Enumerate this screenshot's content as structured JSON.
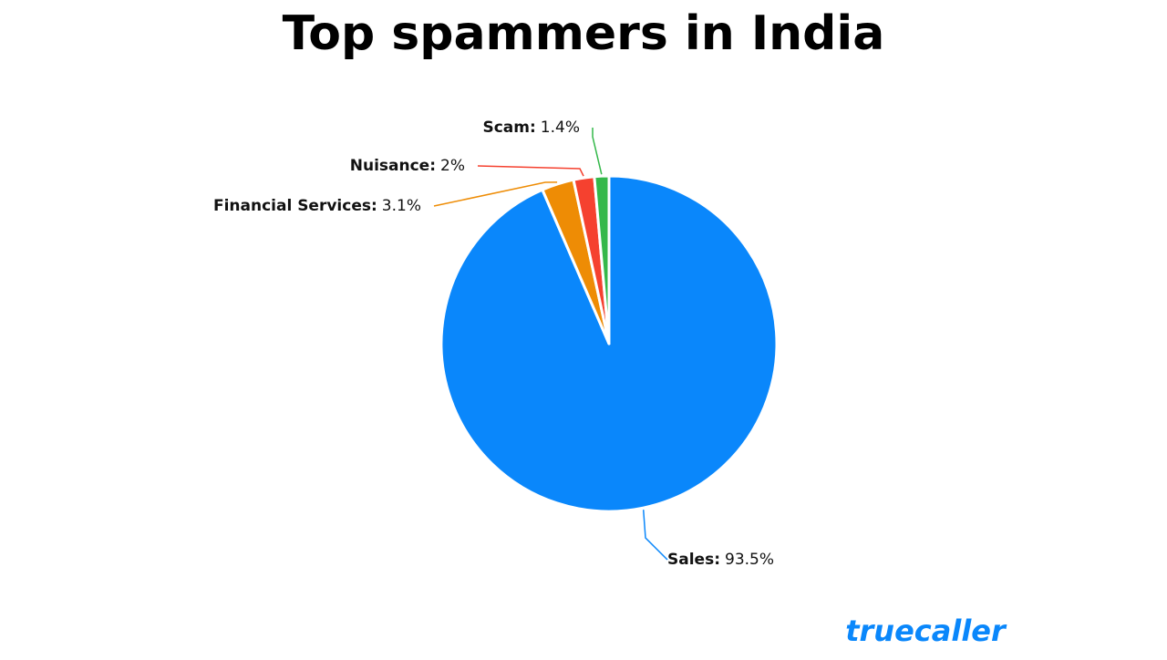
{
  "chart_data": {
    "type": "pie",
    "title": "Top spammers in India",
    "categories": [
      "Sales",
      "Financial Services",
      "Nuisance",
      "Scam"
    ],
    "values": [
      93.5,
      3.1,
      2,
      1.4
    ],
    "value_labels": [
      "93.5%",
      "3.1%",
      "2%",
      "1.4%"
    ],
    "label_separator": ":",
    "colors": [
      "#0a87fb",
      "#ee8c05",
      "#f5412f",
      "#34b84a"
    ]
  },
  "logo": "truecaller"
}
